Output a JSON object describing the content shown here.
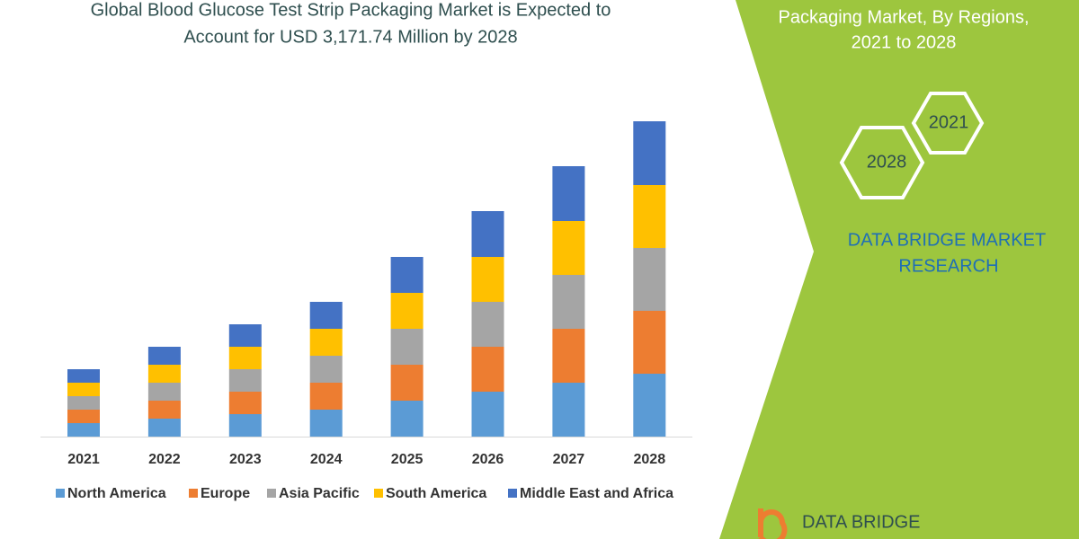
{
  "chart_data": {
    "type": "stacked_bar",
    "title": [
      "Global Blood Glucose Test Strip Packaging Market is Expected to",
      "Account for USD 3,171.74 Million by 2028"
    ],
    "categories": [
      "2021",
      "2022",
      "2023",
      "2024",
      "2025",
      "2026",
      "2027",
      "2028"
    ],
    "series": [
      {
        "name": "North America",
        "color": "#5b9bd5",
        "values": [
          15,
          20,
          25,
          30,
          40,
          50,
          60,
          70
        ]
      },
      {
        "name": "Europe",
        "color": "#ed7d31",
        "values": [
          15,
          20,
          25,
          30,
          40,
          50,
          60,
          70
        ]
      },
      {
        "name": "Asia Pacific",
        "color": "#a5a5a5",
        "values": [
          15,
          20,
          25,
          30,
          40,
          50,
          60,
          70
        ]
      },
      {
        "name": "South America",
        "color": "#ffc000",
        "values": [
          15,
          20,
          25,
          30,
          40,
          50,
          60,
          70
        ]
      },
      {
        "name": "Middle East and Africa",
        "color": "#4472c4",
        "values": [
          15,
          20,
          25,
          30,
          40,
          51,
          61,
          71
        ]
      }
    ],
    "ylim": [
      0,
      351
    ]
  },
  "panel": {
    "subtitle": [
      "Packaging Market, By Regions,",
      "2021 to 2028"
    ],
    "hexagons": [
      "2021",
      "2028"
    ],
    "brand": [
      "DATA BRIDGE MARKET",
      "RESEARCH"
    ],
    "logo": "DATA BRIDGE"
  }
}
